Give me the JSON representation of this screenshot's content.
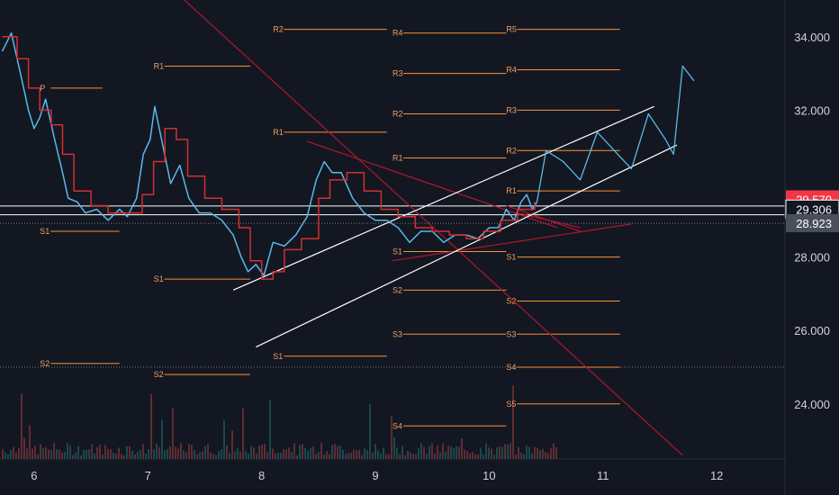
{
  "chart_data": {
    "type": "line",
    "title": "",
    "grid": false,
    "xlim": [
      5.7,
      12.6
    ],
    "ylim": [
      22.5,
      35.0
    ],
    "x_ticks": [
      {
        "value": 6,
        "label": "6"
      },
      {
        "value": 7,
        "label": "7"
      },
      {
        "value": 8,
        "label": "8"
      },
      {
        "value": 9,
        "label": "9"
      },
      {
        "value": 10,
        "label": "10"
      },
      {
        "value": 11,
        "label": "11"
      },
      {
        "value": 12,
        "label": "12"
      }
    ],
    "y_ticks": [
      {
        "value": 24,
        "label": "24.000"
      },
      {
        "value": 26,
        "label": "26.000"
      },
      {
        "value": 28,
        "label": "28.000"
      },
      {
        "value": 32,
        "label": "32.000"
      },
      {
        "value": 34,
        "label": "34.000"
      }
    ],
    "price_labels": [
      {
        "value": 29.57,
        "label": "29.570",
        "bg": "#f23645",
        "fg": "#ffffff"
      },
      {
        "value": 29.306,
        "label": "29.306",
        "bg": "#131722",
        "fg": "#ffffff"
      },
      {
        "value": 28.923,
        "label": "28.923",
        "bg": "#4a4f5e",
        "fg": "#ffffff"
      }
    ],
    "horizontal_lines": [
      {
        "value": 29.39,
        "color": "#ffffff",
        "style": "solid"
      },
      {
        "value": 29.15,
        "color": "#ffffff",
        "style": "solid"
      },
      {
        "value": 28.92,
        "color": "#787b86",
        "style": "dotted"
      },
      {
        "value": 25.0,
        "color": "#787b86",
        "style": "dotted"
      }
    ],
    "pivot_levels": [
      {
        "label": "P",
        "x_start": 6.05,
        "x_end": 6.6,
        "value": 32.6
      },
      {
        "label": "S1",
        "x_start": 6.05,
        "x_end": 6.75,
        "value": 28.7
      },
      {
        "label": "S2",
        "x_start": 6.05,
        "x_end": 6.75,
        "value": 25.1
      },
      {
        "label": "R1",
        "x_start": 7.05,
        "x_end": 7.9,
        "value": 33.2
      },
      {
        "label": "S1",
        "x_start": 7.05,
        "x_end": 7.9,
        "value": 27.4
      },
      {
        "label": "S2",
        "x_start": 7.05,
        "x_end": 7.9,
        "value": 24.8
      },
      {
        "label": "R2",
        "x_start": 8.1,
        "x_end": 9.1,
        "value": 34.2
      },
      {
        "label": "R1",
        "x_start": 8.1,
        "x_end": 9.1,
        "value": 31.4
      },
      {
        "label": "S1",
        "x_start": 8.1,
        "x_end": 9.1,
        "value": 25.3
      },
      {
        "label": "R4",
        "x_start": 9.15,
        "x_end": 10.15,
        "value": 34.1
      },
      {
        "label": "R3",
        "x_start": 9.15,
        "x_end": 10.15,
        "value": 33.0
      },
      {
        "label": "R2",
        "x_start": 9.15,
        "x_end": 10.15,
        "value": 31.9
      },
      {
        "label": "R1",
        "x_start": 9.15,
        "x_end": 10.15,
        "value": 30.7
      },
      {
        "label": "S1",
        "x_start": 9.15,
        "x_end": 10.15,
        "value": 28.15
      },
      {
        "label": "S2",
        "x_start": 9.15,
        "x_end": 10.15,
        "value": 27.1
      },
      {
        "label": "S3",
        "x_start": 9.15,
        "x_end": 10.15,
        "value": 25.9
      },
      {
        "label": "S4",
        "x_start": 9.15,
        "x_end": 10.15,
        "value": 23.4
      },
      {
        "label": "R5",
        "x_start": 10.15,
        "x_end": 11.15,
        "value": 34.2
      },
      {
        "label": "R4",
        "x_start": 10.15,
        "x_end": 11.15,
        "value": 33.1
      },
      {
        "label": "R3",
        "x_start": 10.15,
        "x_end": 11.15,
        "value": 32.0
      },
      {
        "label": "R2",
        "x_start": 10.15,
        "x_end": 11.15,
        "value": 30.9
      },
      {
        "label": "R1",
        "x_start": 10.15,
        "x_end": 11.15,
        "value": 29.8
      },
      {
        "label": "S1",
        "x_start": 10.15,
        "x_end": 11.15,
        "value": 28.0
      },
      {
        "label": "S2",
        "x_start": 10.15,
        "x_end": 11.15,
        "value": 26.8
      },
      {
        "label": "S3",
        "x_start": 10.15,
        "x_end": 11.15,
        "value": 25.9
      },
      {
        "label": "S4",
        "x_start": 10.15,
        "x_end": 11.15,
        "value": 25.0
      },
      {
        "label": "S5",
        "x_start": 10.15,
        "x_end": 11.15,
        "value": 24.0
      }
    ],
    "trendlines": [
      {
        "color": "#b2172b",
        "x": [
          7.25,
          11.7
        ],
        "y": [
          35.2,
          22.6
        ]
      },
      {
        "color": "#b2172b",
        "x": [
          8.4,
          10.6
        ],
        "y": [
          31.15,
          28.8
        ]
      },
      {
        "color": "#b2172b",
        "x": [
          9.15,
          11.25
        ],
        "y": [
          27.9,
          28.9
        ]
      },
      {
        "color": "#b2172b",
        "x": [
          10.15,
          10.8
        ],
        "y": [
          29.4,
          28.7
        ]
      },
      {
        "color": "#b2172b",
        "x": [
          10.25,
          10.8
        ],
        "y": [
          29.2,
          28.8
        ]
      },
      {
        "color": "#ffffff",
        "x": [
          7.75,
          11.45
        ],
        "y": [
          27.1,
          32.1
        ]
      },
      {
        "color": "#ffffff",
        "x": [
          7.95,
          11.65
        ],
        "y": [
          25.55,
          31.05
        ]
      }
    ],
    "series": [
      {
        "name": "price",
        "color": "#5bb8e8",
        "x": [
          5.72,
          5.8,
          5.88,
          5.95,
          6.0,
          6.05,
          6.1,
          6.18,
          6.25,
          6.3,
          6.38,
          6.45,
          6.55,
          6.65,
          6.75,
          6.82,
          6.9,
          6.96,
          7.02,
          7.06,
          7.12,
          7.2,
          7.28,
          7.36,
          7.45,
          7.55,
          7.65,
          7.75,
          7.82,
          7.88,
          7.95,
          8.02,
          8.1,
          8.2,
          8.3,
          8.4,
          8.48,
          8.55,
          8.62,
          8.7,
          8.8,
          8.9,
          9.0,
          9.1,
          9.2,
          9.3,
          9.4,
          9.5,
          9.6,
          9.7,
          9.8,
          9.9,
          10.0,
          10.08,
          10.15,
          10.22,
          10.28,
          10.33,
          10.38,
          10.42
        ],
        "y": [
          33.6,
          34.1,
          33.0,
          32.0,
          31.5,
          31.8,
          32.3,
          31.2,
          30.3,
          29.6,
          29.5,
          29.2,
          29.3,
          29.0,
          29.3,
          29.1,
          29.6,
          30.8,
          31.2,
          32.1,
          31.2,
          30.0,
          30.5,
          29.6,
          29.2,
          29.2,
          29.0,
          28.6,
          28.0,
          27.6,
          27.8,
          27.5,
          28.4,
          28.3,
          28.6,
          29.1,
          30.1,
          30.6,
          30.3,
          30.3,
          29.6,
          29.2,
          29.0,
          29.0,
          28.8,
          28.4,
          28.7,
          28.7,
          28.4,
          28.6,
          28.6,
          28.5,
          28.8,
          28.8,
          29.3,
          29.0,
          29.5,
          29.7,
          29.3,
          29.5
        ]
      },
      {
        "name": "forecast",
        "color": "#5bb8e8",
        "x": [
          10.42,
          10.5,
          10.65,
          10.8,
          10.95,
          11.1,
          11.25,
          11.4,
          11.55,
          11.62,
          11.7,
          11.75,
          11.8
        ],
        "y": [
          29.5,
          30.9,
          30.6,
          30.1,
          31.4,
          30.9,
          30.4,
          31.9,
          31.2,
          30.8,
          33.2,
          33.0,
          32.8
        ]
      },
      {
        "name": "baseline",
        "color": "#d32f2f",
        "x": [
          5.72,
          5.85,
          5.95,
          6.05,
          6.15,
          6.25,
          6.35,
          6.5,
          6.65,
          6.8,
          6.95,
          7.05,
          7.15,
          7.25,
          7.35,
          7.5,
          7.65,
          7.8,
          7.9,
          8.0,
          8.1,
          8.2,
          8.35,
          8.5,
          8.6,
          8.75,
          8.9,
          9.05,
          9.2,
          9.35,
          9.5,
          9.65,
          9.8,
          9.95,
          10.1,
          10.25,
          10.4
        ],
        "y": [
          34.0,
          33.4,
          32.6,
          32.0,
          31.6,
          30.8,
          29.8,
          29.4,
          29.2,
          29.2,
          29.7,
          30.6,
          31.5,
          31.2,
          30.2,
          29.6,
          29.3,
          28.8,
          27.9,
          27.4,
          27.6,
          28.2,
          28.5,
          29.6,
          30.1,
          30.3,
          29.8,
          29.3,
          29.1,
          28.8,
          28.7,
          28.6,
          28.5,
          28.7,
          29.0,
          29.3,
          29.5
        ]
      }
    ]
  }
}
